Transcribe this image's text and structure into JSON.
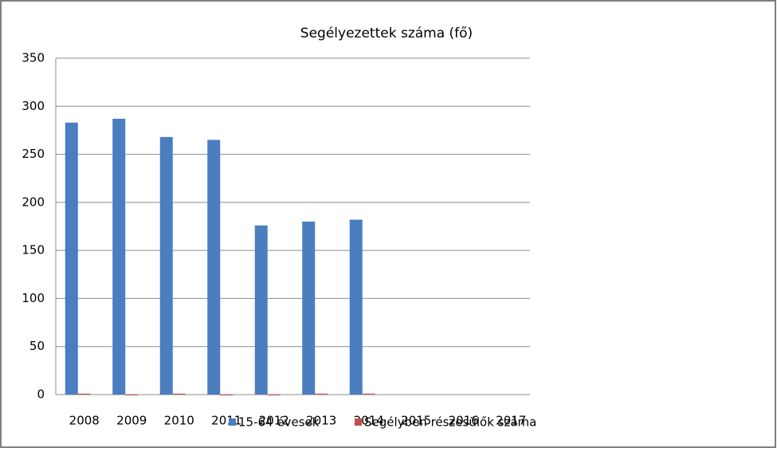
{
  "chart_data": {
    "type": "bar",
    "title": "Segélyezettek száma (fő)",
    "categories": [
      "2008",
      "2009",
      "2010",
      "2011",
      "2012",
      "2013",
      "2014",
      "2015",
      "2016",
      "2017"
    ],
    "series": [
      {
        "name": "15-64 évesek",
        "color": "#4a7ebf",
        "values": [
          283,
          287,
          268,
          265,
          176,
          180,
          182,
          null,
          null,
          null
        ]
      },
      {
        "name": "Segélyben részesülők száma",
        "color": "#c0504d",
        "values": [
          1,
          0,
          1,
          0,
          0,
          1,
          1,
          null,
          null,
          null
        ]
      }
    ],
    "ylim": [
      0,
      350
    ],
    "yticks": [
      0,
      50,
      100,
      150,
      200,
      250,
      300,
      350
    ],
    "grid": true,
    "legend": "bottom"
  }
}
